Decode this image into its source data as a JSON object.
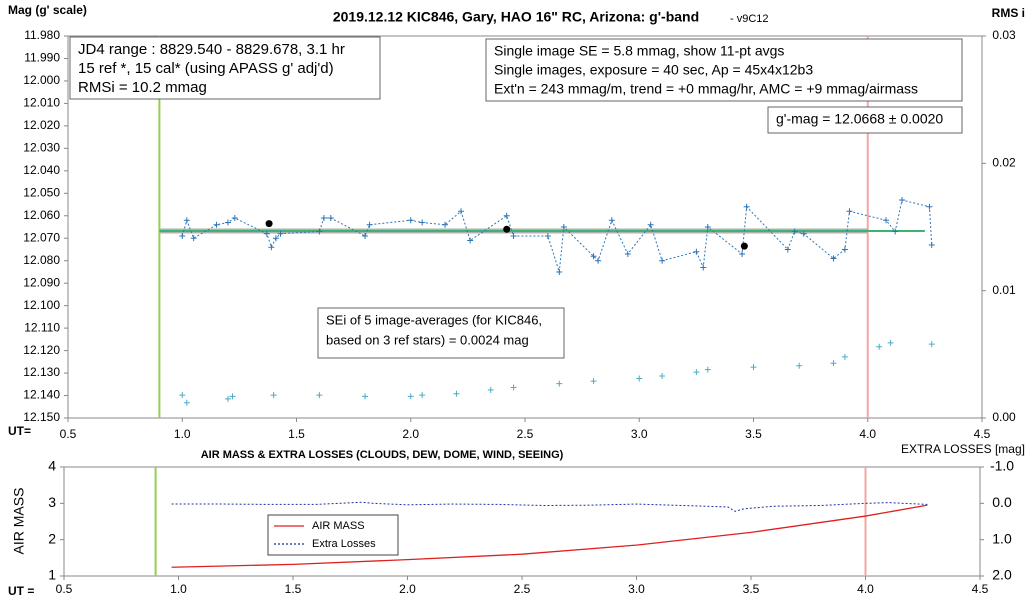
{
  "chart_data": [
    {
      "type": "line",
      "title": "2019.12.12 KIC846, Gary, HAO 16\" RC, Arizona: g'-band",
      "subtitle": "- v9C12",
      "y_label": "Mag (g' scale)",
      "y2_label": "RMS i",
      "x_label": "UT=",
      "xlim": [
        0.5,
        4.5
      ],
      "xticks": [
        0.5,
        {
          "value": 1,
          "label": "1.0"
        },
        1.5,
        {
          "value": 2,
          "label": "2.0"
        },
        2.5,
        {
          "value": 3,
          "label": "3.0"
        },
        3.5,
        {
          "value": 4,
          "label": "4.0"
        },
        4.5
      ],
      "ylim": [
        12.15,
        11.98
      ],
      "yticks": [
        {
          "value": 11.98,
          "label": "11.980"
        },
        {
          "value": 11.99,
          "label": "11.990"
        },
        {
          "value": 12.0,
          "label": "12.000"
        },
        {
          "value": 12.01,
          "label": "12.010"
        },
        {
          "value": 12.02,
          "label": "12.020"
        },
        {
          "value": 12.03,
          "label": "12.030"
        },
        {
          "value": 12.04,
          "label": "12.040"
        },
        {
          "value": 12.05,
          "label": "12.050"
        },
        {
          "value": 12.06,
          "label": "12.060"
        },
        {
          "value": 12.07,
          "label": "12.070"
        },
        {
          "value": 12.08,
          "label": "12.080"
        },
        {
          "value": 12.09,
          "label": "12.090"
        },
        {
          "value": 12.1,
          "label": "12.100"
        },
        {
          "value": 12.11,
          "label": "12.110"
        },
        {
          "value": 12.12,
          "label": "12.120"
        },
        {
          "value": 12.13,
          "label": "12.130"
        },
        {
          "value": 12.14,
          "label": "12.140"
        },
        {
          "value": 12.15,
          "label": "12.150"
        }
      ],
      "y2lim": [
        0,
        0.03
      ],
      "y2ticks": [
        {
          "value": 0,
          "label": "0.00"
        },
        0.01,
        0.02,
        0.03
      ],
      "series": [
        {
          "color": "#2e75b6",
          "marker": "+",
          "x": [
            1.0,
            1.02,
            1.05,
            1.15,
            1.2,
            1.23,
            1.37,
            1.39,
            1.41,
            1.43,
            1.6,
            1.62,
            1.65,
            1.8,
            1.82,
            2.0,
            2.05,
            2.15,
            2.22,
            2.26,
            2.42,
            2.45,
            2.6,
            2.65,
            2.67,
            2.8,
            2.82,
            2.88,
            2.95,
            3.05,
            3.1,
            3.25,
            3.28,
            3.3,
            3.45,
            3.47,
            3.65,
            3.68,
            3.72,
            3.85,
            3.9,
            3.92,
            4.08,
            4.12,
            4.15,
            4.27,
            4.28
          ],
          "values": [
            12.069,
            12.062,
            12.07,
            12.064,
            12.063,
            12.061,
            12.068,
            12.074,
            12.07,
            12.068,
            12.067,
            12.061,
            12.061,
            12.069,
            12.064,
            12.062,
            12.063,
            12.064,
            12.058,
            12.071,
            12.06,
            12.069,
            12.069,
            12.085,
            12.065,
            12.078,
            12.08,
            12.062,
            12.077,
            12.064,
            12.08,
            12.076,
            12.083,
            12.065,
            12.077,
            12.056,
            12.075,
            12.067,
            12.068,
            12.079,
            12.075,
            12.058,
            12.062,
            12.067,
            12.053,
            12.056,
            12.073
          ]
        },
        {
          "color": "#000000",
          "marker": "dot",
          "x": [
            1.38,
            2.42,
            3.46
          ],
          "values": [
            12.0635,
            12.066,
            12.0735
          ]
        },
        {
          "color": "#4bacc6",
          "marker": "+",
          "axis": "y2",
          "x": [
            1.0,
            1.02,
            1.2,
            1.22,
            1.4,
            1.6,
            1.8,
            2.0,
            2.05,
            2.2,
            2.35,
            2.45,
            2.65,
            2.8,
            3.0,
            3.1,
            3.25,
            3.3,
            3.5,
            3.7,
            3.85,
            3.9,
            4.05,
            4.1,
            4.28
          ],
          "values": [
            0.0018,
            0.0012,
            0.0015,
            0.0017,
            0.0018,
            0.0018,
            0.0017,
            0.0017,
            0.0018,
            0.0019,
            0.0022,
            0.0024,
            0.0027,
            0.0029,
            0.0031,
            0.0033,
            0.0036,
            0.0038,
            0.004,
            0.0041,
            0.0043,
            0.0048,
            0.0056,
            0.0059,
            0.0058
          ]
        }
      ],
      "hlines": [
        {
          "value": 12.0668,
          "x": [
            0.9,
            4.0
          ],
          "color": "#b0b0b0"
        },
        {
          "value": 12.0668,
          "x": [
            0.9,
            4.25
          ],
          "color": "#3cb371"
        }
      ],
      "vlines": [
        {
          "value": 0.9,
          "color": "#92d050"
        },
        {
          "value": 4.0,
          "color": "#f4a6a6"
        }
      ],
      "annotations": [
        {
          "lines": [
            "JD4 range : 8829.540 - 8829.678,  3.1  hr",
            "15 ref *, 15 cal* (using APASS g' adj'd)",
            "RMSi = 10.2 mmag"
          ]
        },
        {
          "lines": [
            "Single image SE = 5.8 mmag, show  11-pt avgs",
            "Single images, exposure = 40 sec, Ap = 45x4x12b3",
            "Ext'n = 243 mmag/m, trend =  +0 mmag/hr, AMC = +9 mmag/airmass"
          ]
        },
        {
          "lines": [
            "g'-mag = 12.0668 ± 0.0020"
          ]
        },
        {
          "lines": [
            "SEi of 5 image-averages (for KIC846,",
            "based on 3 ref stars) = 0.0024 mag"
          ]
        }
      ]
    },
    {
      "type": "line",
      "title": "AIR MASS & EXTRA LOSSES (CLOUDS, DEW, DOME, WIND, SEEING)",
      "y_label": "AIR MASS",
      "y2_label": "EXTRA LOSSES [mag]",
      "x_label": "UT =",
      "xlim": [
        0.5,
        4.5
      ],
      "xticks": [
        0.5,
        {
          "value": 1,
          "label": "1.0"
        },
        1.5,
        {
          "value": 2,
          "label": "2.0"
        },
        2.5,
        {
          "value": 3,
          "label": "3.0"
        },
        3.5,
        {
          "value": 4,
          "label": "4.0"
        },
        4.5
      ],
      "ylim": [
        1,
        4
      ],
      "yticks": [
        1,
        2,
        3,
        4
      ],
      "y2lim": [
        2,
        -1
      ],
      "y2ticks": [
        {
          "value": -1,
          "label": "-1.0"
        },
        {
          "value": 0,
          "label": "0.0"
        },
        {
          "value": 1,
          "label": "1.0"
        },
        {
          "value": 2,
          "label": "2.0"
        }
      ],
      "series": [
        {
          "name": "AIR MASS",
          "color": "#e02020",
          "x": [
            0.97,
            1.5,
            2.0,
            2.5,
            3.0,
            3.5,
            4.0,
            4.27
          ],
          "values": [
            1.24,
            1.32,
            1.45,
            1.6,
            1.85,
            2.2,
            2.65,
            2.95
          ]
        },
        {
          "name": "Extra Losses",
          "color": "#1f2fa0",
          "axis": "y2",
          "dash": true,
          "x": [
            0.97,
            1.2,
            1.4,
            1.6,
            1.8,
            1.85,
            2.0,
            2.2,
            2.4,
            2.6,
            2.8,
            3.0,
            3.2,
            3.4,
            3.43,
            3.47,
            3.6,
            3.8,
            4.0,
            4.1,
            4.27
          ],
          "values": [
            0.02,
            0.02,
            0.03,
            0.03,
            -0.03,
            0.0,
            0.04,
            0.02,
            0.03,
            0.06,
            0.05,
            0.02,
            0.06,
            0.1,
            0.22,
            0.15,
            0.08,
            0.06,
            0.0,
            -0.02,
            0.03
          ]
        }
      ],
      "vlines": [
        {
          "value": 0.9,
          "color": "#92d050"
        },
        {
          "value": 4.0,
          "color": "#f4a6a6"
        }
      ]
    }
  ]
}
